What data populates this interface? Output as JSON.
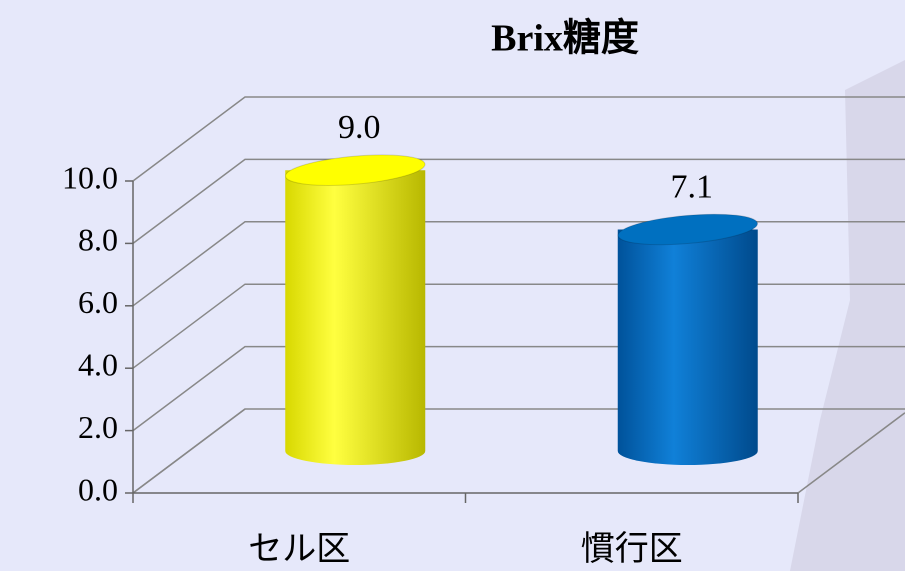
{
  "chart_data": {
    "type": "bar3d",
    "title": "Brix糖度",
    "categories": [
      "セル区",
      "慣行区"
    ],
    "values": [
      9.0,
      7.1
    ],
    "value_labels": [
      "9.0",
      "7.1"
    ],
    "colors": [
      "#ffff00",
      "#0070c0"
    ],
    "ylim": [
      0,
      10
    ],
    "yticks": [
      {
        "value": 0,
        "label": "0.0"
      },
      {
        "value": 2,
        "label": "2.0"
      },
      {
        "value": 4,
        "label": "4.0"
      },
      {
        "value": 6,
        "label": "6.0"
      },
      {
        "value": 8,
        "label": "8.0"
      },
      {
        "value": 10,
        "label": "10.0"
      }
    ],
    "grid": true
  }
}
